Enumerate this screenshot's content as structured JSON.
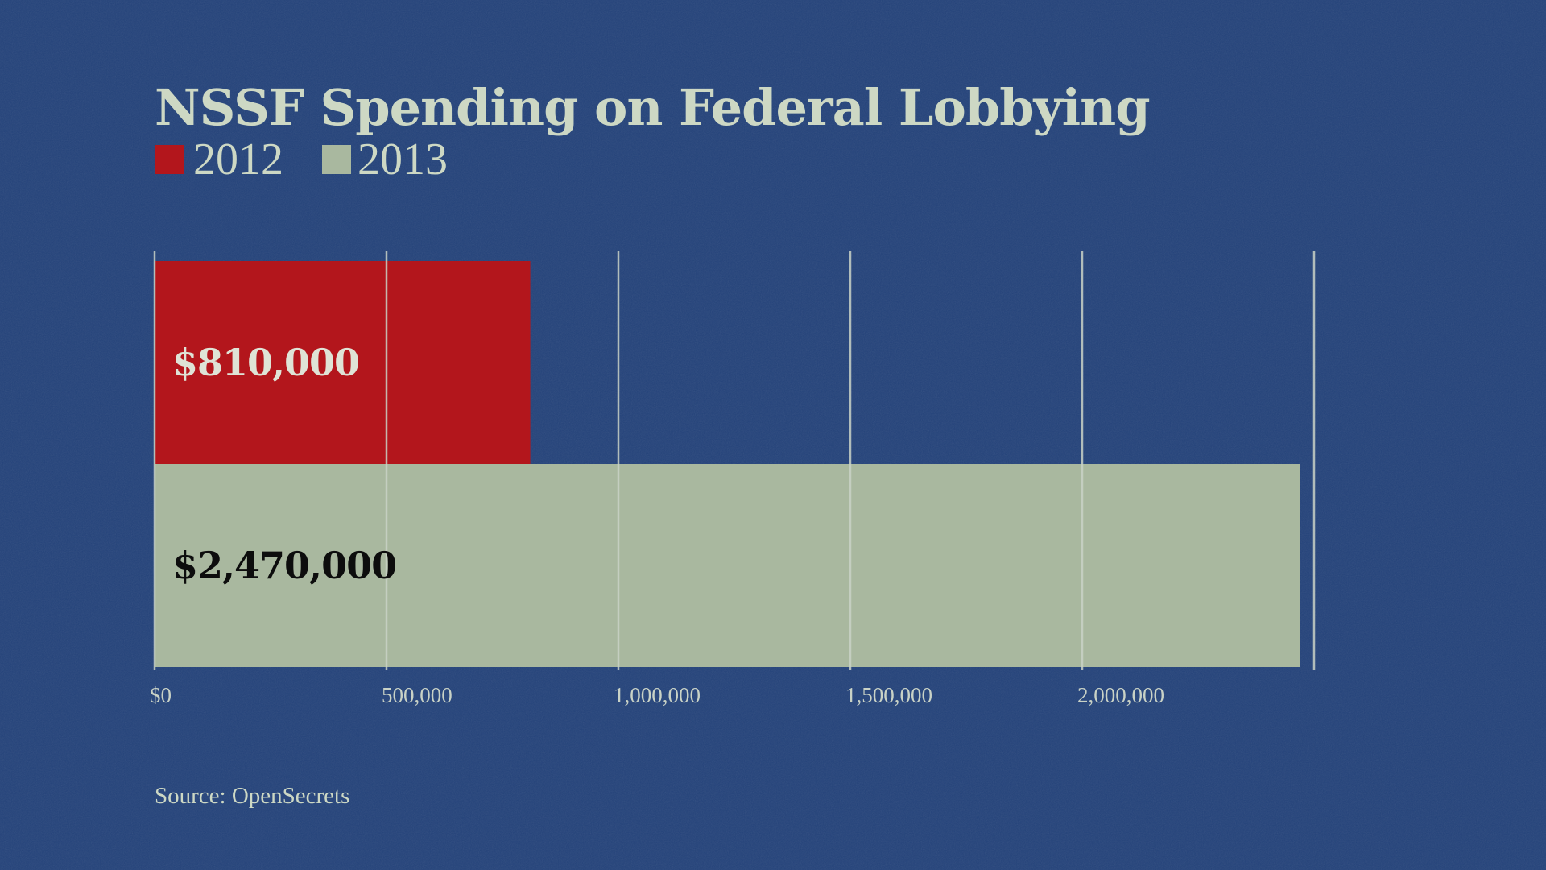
{
  "chart_data": {
    "type": "bar",
    "orientation": "horizontal",
    "title": "NSSF Spending on Federal Lobbying",
    "categories": [
      "2012",
      "2013"
    ],
    "values": [
      810000,
      2470000
    ],
    "value_labels": [
      "$810,000",
      "$2,470,000"
    ],
    "xlim": [
      0,
      2500000
    ],
    "ticks": [
      0,
      500000,
      1000000,
      1500000,
      2000000,
      2500000
    ],
    "tick_labels": [
      "$0",
      "500,000",
      "1,000,000",
      "1,500,000",
      "2,000,000",
      ""
    ],
    "grid": true,
    "legend": [
      {
        "label": "2012",
        "color": "#b3161c"
      },
      {
        "label": "2013",
        "color": "#a9b89f"
      }
    ],
    "legend_position": "top-left",
    "source": "Source: OpenSecrets"
  },
  "colors": {
    "background": "#23427a",
    "title": "#cdd8c4",
    "bar_2012": "#b3161c",
    "bar_2013": "#a9b89f",
    "grid": "#c9d2c6",
    "label_on_red": "#dfe3d6",
    "label_on_light": "#0d0d0d",
    "tick": "#c9d2c6"
  }
}
